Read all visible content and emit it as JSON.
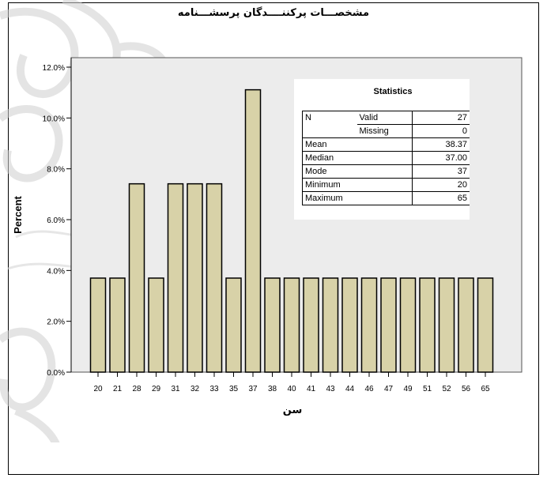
{
  "title": "مشخصـــات پرکننــــدگان پرسشـــنامه",
  "colors": {
    "bar_fill": "#d8d2a8",
    "plot_bg": "#ececec"
  },
  "statistics": {
    "title": "Statistics",
    "rows": [
      {
        "label": "N",
        "sublabel": "Valid",
        "value": "27"
      },
      {
        "label": "",
        "sublabel": "Missing",
        "value": "0"
      },
      {
        "label": "Mean",
        "sublabel": "",
        "value": "38.37"
      },
      {
        "label": "Median",
        "sublabel": "",
        "value": "37.00"
      },
      {
        "label": "Mode",
        "sublabel": "",
        "value": "37"
      },
      {
        "label": "Minimum",
        "sublabel": "",
        "value": "20"
      },
      {
        "label": "Maximum",
        "sublabel": "",
        "value": "65"
      }
    ]
  },
  "chart_data": {
    "type": "bar",
    "title": "",
    "xlabel": "سن",
    "ylabel": "Percent",
    "categories": [
      "20",
      "21",
      "28",
      "29",
      "31",
      "32",
      "33",
      "35",
      "37",
      "38",
      "40",
      "41",
      "43",
      "44",
      "46",
      "47",
      "49",
      "51",
      "52",
      "56",
      "65"
    ],
    "values": [
      3.7,
      3.7,
      7.41,
      3.7,
      7.41,
      7.41,
      7.41,
      3.7,
      11.11,
      3.7,
      3.7,
      3.7,
      3.7,
      3.7,
      3.7,
      3.7,
      3.7,
      3.7,
      3.7,
      3.7,
      3.7
    ],
    "ylim": [
      0,
      12
    ],
    "yticks": [
      "0.0%",
      "2.0%",
      "4.0%",
      "6.0%",
      "8.0%",
      "10.0%",
      "12.0%"
    ],
    "grid": false,
    "legend": "none"
  }
}
